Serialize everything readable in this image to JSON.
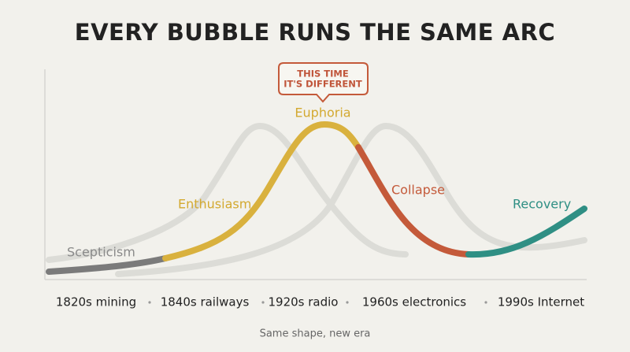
{
  "title": "EVERY BUBBLE RUNS THE SAME ARC",
  "callout": [
    "THIS TIME",
    "IT'S DIFFERENT"
  ],
  "phases": [
    "Scepticism",
    "Enthusiasm",
    "Euphoria",
    "Collapse",
    "Recovery"
  ],
  "eras": [
    "1820s mining",
    "1840s railways",
    "1920s radio",
    "1960s electronics",
    "1990s Internet"
  ],
  "footer": "Same shape, new era"
}
